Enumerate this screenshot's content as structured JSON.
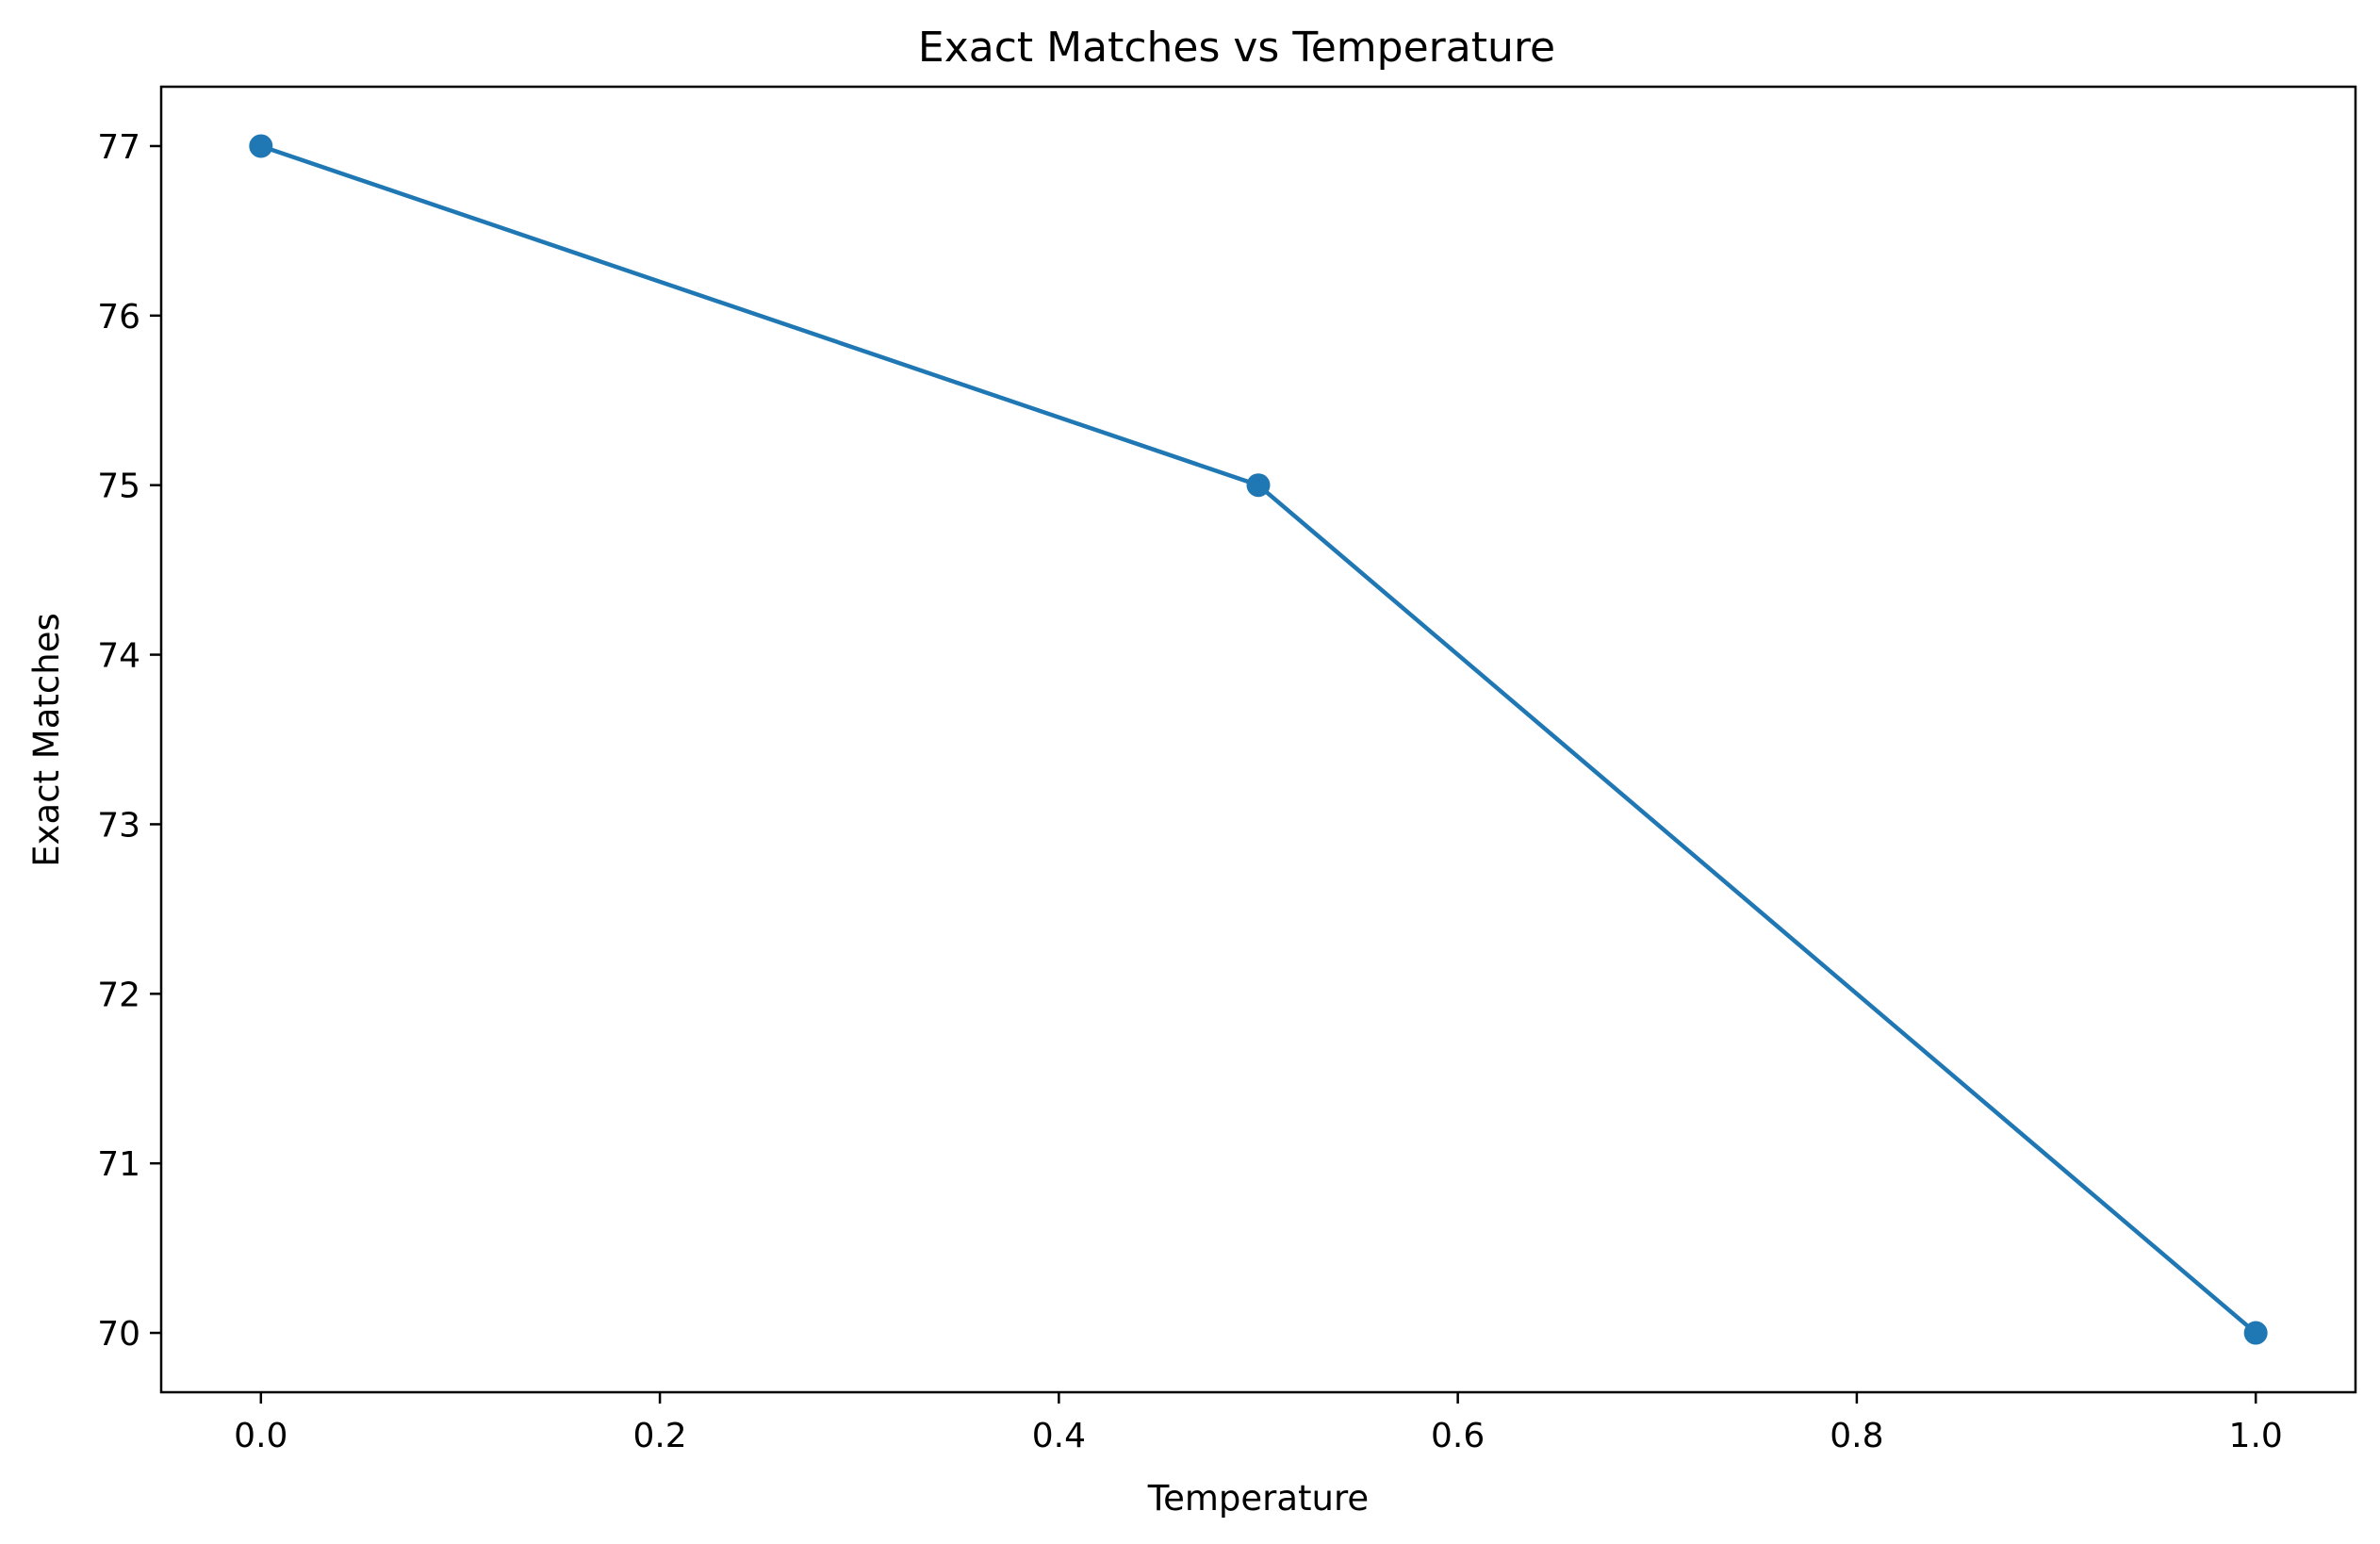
{
  "chart_data": {
    "type": "line",
    "title": "Exact Matches vs Temperature",
    "xlabel": "Temperature",
    "ylabel": "Exact Matches",
    "xlim": [
      -0.05,
      1.05
    ],
    "ylim": [
      69.65,
      77.35
    ],
    "x_ticks": [
      "0.0",
      "0.2",
      "0.4",
      "0.6",
      "0.8",
      "1.0"
    ],
    "y_ticks": [
      "70",
      "71",
      "72",
      "73",
      "74",
      "75",
      "76",
      "77"
    ],
    "grid": false,
    "legend": "none",
    "series": [
      {
        "color": "#1f77b4",
        "marker": "circle",
        "x": [
          0.0,
          0.5,
          1.0
        ],
        "y": [
          77,
          75,
          70
        ]
      }
    ]
  }
}
